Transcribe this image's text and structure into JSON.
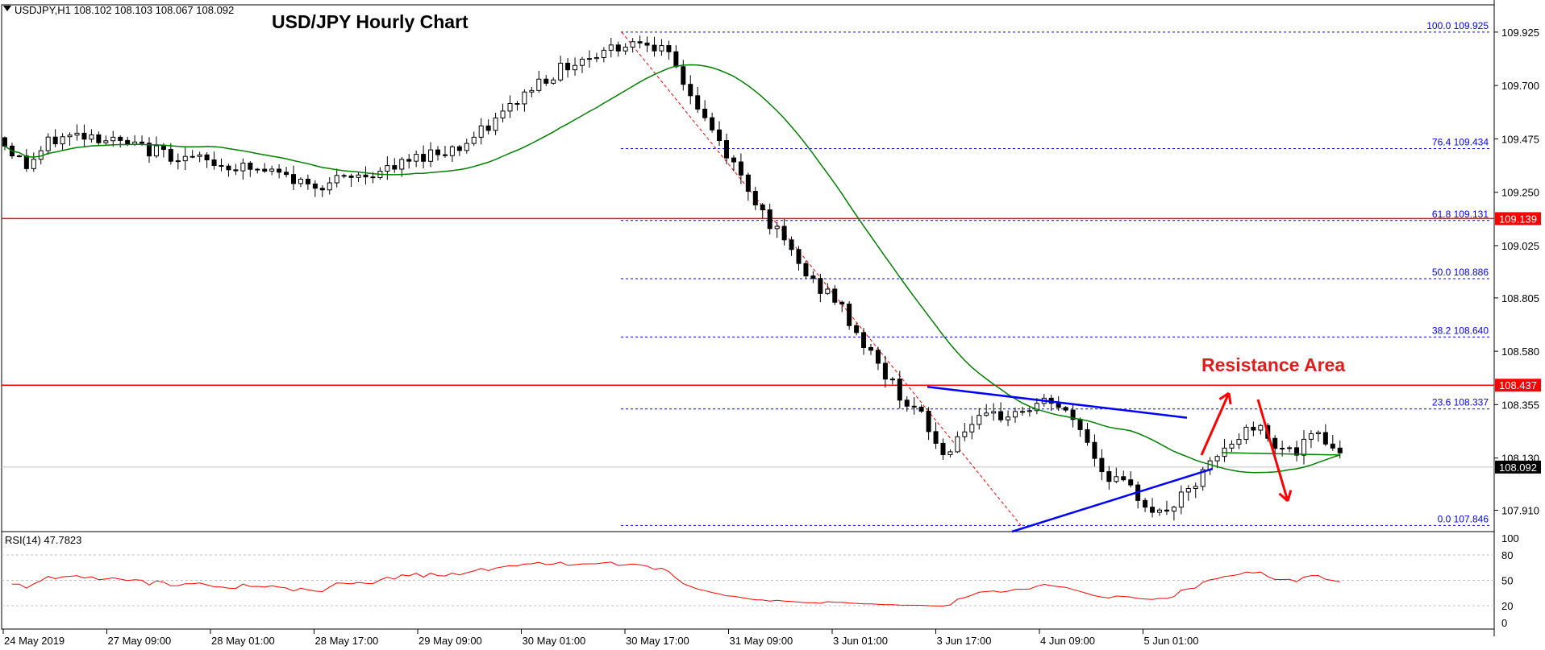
{
  "header": {
    "symbol_info": "USDJPY,H1  108.102 108.103 108.067 108.092",
    "title": "USD/JPY Hourly Chart"
  },
  "annotations": {
    "resistance_label": "Resistance Area"
  },
  "chart_data": {
    "type": "candlestick",
    "symbol": "USDJPY",
    "timeframe": "H1",
    "ohlc_header": {
      "open": 108.102,
      "high": 108.103,
      "low": 108.067,
      "close": 108.092
    },
    "title": "USD/JPY Hourly Chart",
    "ylim": [
      107.82,
      110.04
    ],
    "y_ticks": [
      "109.925",
      "109.700",
      "109.475",
      "109.250",
      "109.025",
      "108.805",
      "108.580",
      "108.355",
      "108.130",
      "107.910"
    ],
    "x_ticks": [
      "24 May 2019",
      "27 May 09:00",
      "28 May 01:00",
      "28 May 17:00",
      "29 May 09:00",
      "30 May 01:00",
      "30 May 17:00",
      "31 May 09:00",
      "3 Jun 01:00",
      "3 Jun 17:00",
      "4 Jun 09:00",
      "5 Jun 01:00"
    ],
    "current_price": {
      "value": 108.092,
      "label": "108.092"
    },
    "horizontal_levels": [
      {
        "value": 109.139,
        "label": "109.139",
        "color": "#ff0000"
      },
      {
        "value": 108.437,
        "label": "108.437",
        "color": "#ff0000"
      }
    ],
    "fibonacci": {
      "color": "#0000ff",
      "levels": [
        {
          "ratio": "100.0",
          "value": 109.925
        },
        {
          "ratio": "76.4",
          "value": 109.434
        },
        {
          "ratio": "61.8",
          "value": 109.131
        },
        {
          "ratio": "50.0",
          "value": 108.886
        },
        {
          "ratio": "38.2",
          "value": 108.64
        },
        {
          "ratio": "23.6",
          "value": 108.337
        },
        {
          "ratio": "0.0",
          "value": 107.846
        }
      ]
    },
    "moving_average": {
      "color": "#008000"
    },
    "trendlines": {
      "color": "#0000ff"
    },
    "arrows": {
      "color": "#ff0000"
    },
    "colors": {
      "bull": "#ffffff",
      "bear": "#000000",
      "wick": "#000000",
      "grid": "#c0c0c0",
      "label_bg_red": "#ff0000",
      "label_bg_black": "#000000"
    },
    "rsi": {
      "label": "RSI(14) 47.7823",
      "period": 14,
      "value": 47.7823,
      "color": "#ff0000",
      "ticks": [
        "100",
        "80",
        "50",
        "20",
        "0"
      ],
      "levels": [
        20,
        50,
        80
      ]
    }
  }
}
